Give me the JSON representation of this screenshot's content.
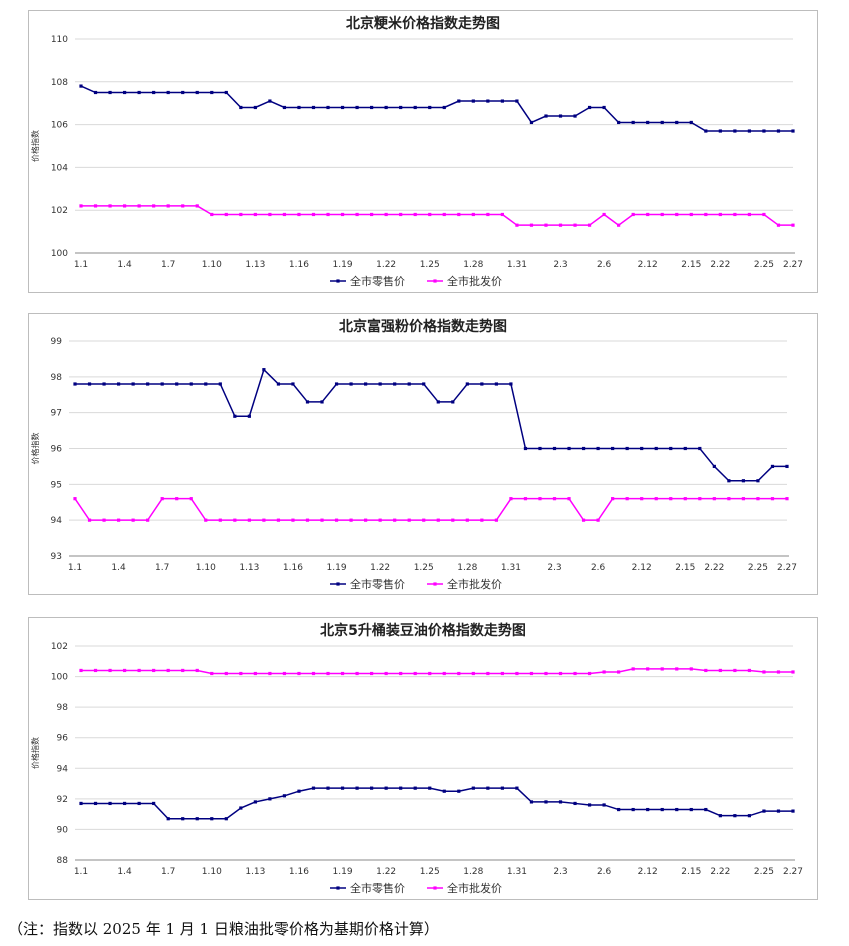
{
  "chart_data": [
    {
      "type": "line",
      "title": "北京粳米价格指数走势图",
      "ylabel": "价格指数",
      "xlabel": "",
      "ylim": [
        100,
        110
      ],
      "yticks": [
        100,
        102,
        104,
        106,
        108,
        110
      ],
      "categories": [
        "1.1",
        "1.2",
        "1.3",
        "1.4",
        "1.5",
        "1.6",
        "1.7",
        "1.8",
        "1.9",
        "1.10",
        "1.11",
        "1.12",
        "1.13",
        "1.14",
        "1.15",
        "1.16",
        "1.17",
        "1.18",
        "1.19",
        "1.20",
        "1.21",
        "1.22",
        "1.23",
        "1.24",
        "1.25",
        "1.26",
        "1.27",
        "1.28",
        "1.29",
        "1.30",
        "1.31",
        "2.1",
        "2.2",
        "2.3",
        "2.4",
        "2.5",
        "2.6",
        "2.7",
        "2.8",
        "2.12",
        "2.13",
        "2.14",
        "2.15",
        "2.18",
        "2.22",
        "2.23",
        "2.24",
        "2.25",
        "2.26",
        "2.27"
      ],
      "xticks": [
        "1.1",
        "1.4",
        "1.7",
        "1.10",
        "1.13",
        "1.16",
        "1.19",
        "1.22",
        "1.25",
        "1.28",
        "1.31",
        "2.3",
        "2.6",
        "2.12",
        "2.15",
        "2.22",
        "2.25",
        "2.27"
      ],
      "legend": [
        "全市零售价",
        "全市批发价"
      ],
      "series": [
        {
          "name": "全市零售价",
          "color": "#000080",
          "values": [
            107.8,
            107.5,
            107.5,
            107.5,
            107.5,
            107.5,
            107.5,
            107.5,
            107.5,
            107.5,
            107.5,
            106.8,
            106.8,
            107.1,
            106.8,
            106.8,
            106.8,
            106.8,
            106.8,
            106.8,
            106.8,
            106.8,
            106.8,
            106.8,
            106.8,
            106.8,
            107.1,
            107.1,
            107.1,
            107.1,
            107.1,
            106.1,
            106.4,
            106.4,
            106.4,
            106.8,
            106.8,
            106.1,
            106.1,
            106.1,
            106.1,
            106.1,
            106.1,
            105.7,
            105.7,
            105.7,
            105.7,
            105.7,
            105.7,
            105.7
          ]
        },
        {
          "name": "全市批发价",
          "color": "#ff00ff",
          "values": [
            102.2,
            102.2,
            102.2,
            102.2,
            102.2,
            102.2,
            102.2,
            102.2,
            102.2,
            101.8,
            101.8,
            101.8,
            101.8,
            101.8,
            101.8,
            101.8,
            101.8,
            101.8,
            101.8,
            101.8,
            101.8,
            101.8,
            101.8,
            101.8,
            101.8,
            101.8,
            101.8,
            101.8,
            101.8,
            101.8,
            101.3,
            101.3,
            101.3,
            101.3,
            101.3,
            101.3,
            101.8,
            101.3,
            101.8,
            101.8,
            101.8,
            101.8,
            101.8,
            101.8,
            101.8,
            101.8,
            101.8,
            101.8,
            101.3,
            101.3
          ]
        }
      ]
    },
    {
      "type": "line",
      "title": "北京富强粉价格指数走势图",
      "ylabel": "价格指数",
      "xlabel": "",
      "ylim": [
        93,
        99
      ],
      "yticks": [
        93,
        94,
        95,
        96,
        97,
        98,
        99
      ],
      "categories": [
        "1.1",
        "1.2",
        "1.3",
        "1.4",
        "1.5",
        "1.6",
        "1.7",
        "1.8",
        "1.9",
        "1.10",
        "1.11",
        "1.12",
        "1.13",
        "1.14",
        "1.15",
        "1.16",
        "1.17",
        "1.18",
        "1.19",
        "1.20",
        "1.21",
        "1.22",
        "1.23",
        "1.24",
        "1.25",
        "1.26",
        "1.27",
        "1.28",
        "1.29",
        "1.30",
        "1.31",
        "2.1",
        "2.2",
        "2.3",
        "2.4",
        "2.5",
        "2.6",
        "2.7",
        "2.8",
        "2.12",
        "2.13",
        "2.14",
        "2.15",
        "2.18",
        "2.22",
        "2.23",
        "2.24",
        "2.25",
        "2.26",
        "2.27"
      ],
      "xticks": [
        "1.1",
        "1.4",
        "1.7",
        "1.10",
        "1.13",
        "1.16",
        "1.19",
        "1.22",
        "1.25",
        "1.28",
        "1.31",
        "2.3",
        "2.6",
        "2.12",
        "2.15",
        "2.22",
        "2.25",
        "2.27"
      ],
      "legend": [
        "全市零售价",
        "全市批发价"
      ],
      "series": [
        {
          "name": "全市零售价",
          "color": "#000080",
          "values": [
            97.8,
            97.8,
            97.8,
            97.8,
            97.8,
            97.8,
            97.8,
            97.8,
            97.8,
            97.8,
            97.8,
            96.9,
            96.9,
            98.2,
            97.8,
            97.8,
            97.3,
            97.3,
            97.8,
            97.8,
            97.8,
            97.8,
            97.8,
            97.8,
            97.8,
            97.3,
            97.3,
            97.8,
            97.8,
            97.8,
            97.8,
            96.0,
            96.0,
            96.0,
            96.0,
            96.0,
            96.0,
            96.0,
            96.0,
            96.0,
            96.0,
            96.0,
            96.0,
            96.0,
            95.5,
            95.1,
            95.1,
            95.1,
            95.5,
            95.5
          ]
        },
        {
          "name": "全市批发价",
          "color": "#ff00ff",
          "values": [
            94.6,
            94.0,
            94.0,
            94.0,
            94.0,
            94.0,
            94.6,
            94.6,
            94.6,
            94.0,
            94.0,
            94.0,
            94.0,
            94.0,
            94.0,
            94.0,
            94.0,
            94.0,
            94.0,
            94.0,
            94.0,
            94.0,
            94.0,
            94.0,
            94.0,
            94.0,
            94.0,
            94.0,
            94.0,
            94.0,
            94.6,
            94.6,
            94.6,
            94.6,
            94.6,
            94.0,
            94.0,
            94.6,
            94.6,
            94.6,
            94.6,
            94.6,
            94.6,
            94.6,
            94.6,
            94.6,
            94.6,
            94.6,
            94.6,
            94.6
          ]
        }
      ]
    },
    {
      "type": "line",
      "title": "北京5升桶装豆油价格指数走势图",
      "ylabel": "价格指数",
      "xlabel": "",
      "ylim": [
        88,
        102
      ],
      "yticks": [
        88,
        90,
        92,
        94,
        96,
        98,
        100,
        102
      ],
      "categories": [
        "1.1",
        "1.2",
        "1.3",
        "1.4",
        "1.5",
        "1.6",
        "1.7",
        "1.8",
        "1.9",
        "1.10",
        "1.11",
        "1.12",
        "1.13",
        "1.14",
        "1.15",
        "1.16",
        "1.17",
        "1.18",
        "1.19",
        "1.20",
        "1.21",
        "1.22",
        "1.23",
        "1.24",
        "1.25",
        "1.26",
        "1.27",
        "1.28",
        "1.29",
        "1.30",
        "1.31",
        "2.1",
        "2.2",
        "2.3",
        "2.4",
        "2.5",
        "2.6",
        "2.7",
        "2.8",
        "2.12",
        "2.13",
        "2.14",
        "2.15",
        "2.18",
        "2.22",
        "2.23",
        "2.24",
        "2.25",
        "2.26",
        "2.27"
      ],
      "xticks": [
        "1.1",
        "1.4",
        "1.7",
        "1.10",
        "1.13",
        "1.16",
        "1.19",
        "1.22",
        "1.25",
        "1.28",
        "1.31",
        "2.3",
        "2.6",
        "2.12",
        "2.15",
        "2.22",
        "2.25",
        "2.27"
      ],
      "legend": [
        "全市零售价",
        "全市批发价"
      ],
      "series": [
        {
          "name": "全市零售价",
          "color": "#000080",
          "values": [
            91.7,
            91.7,
            91.7,
            91.7,
            91.7,
            91.7,
            90.7,
            90.7,
            90.7,
            90.7,
            90.7,
            91.4,
            91.8,
            92.0,
            92.2,
            92.5,
            92.7,
            92.7,
            92.7,
            92.7,
            92.7,
            92.7,
            92.7,
            92.7,
            92.7,
            92.5,
            92.5,
            92.7,
            92.7,
            92.7,
            92.7,
            91.8,
            91.8,
            91.8,
            91.7,
            91.6,
            91.6,
            91.3,
            91.3,
            91.3,
            91.3,
            91.3,
            91.3,
            91.3,
            90.9,
            90.9,
            90.9,
            91.2,
            91.2,
            91.2
          ]
        },
        {
          "name": "全市批发价",
          "color": "#ff00ff",
          "values": [
            100.4,
            100.4,
            100.4,
            100.4,
            100.4,
            100.4,
            100.4,
            100.4,
            100.4,
            100.2,
            100.2,
            100.2,
            100.2,
            100.2,
            100.2,
            100.2,
            100.2,
            100.2,
            100.2,
            100.2,
            100.2,
            100.2,
            100.2,
            100.2,
            100.2,
            100.2,
            100.2,
            100.2,
            100.2,
            100.2,
            100.2,
            100.2,
            100.2,
            100.2,
            100.2,
            100.2,
            100.3,
            100.3,
            100.5,
            100.5,
            100.5,
            100.5,
            100.5,
            100.4,
            100.4,
            100.4,
            100.4,
            100.3,
            100.3,
            100.3
          ]
        }
      ]
    }
  ],
  "footnote": "（注：指数以 2025 年 1 月 1 日粮油批零价格为基期价格计算）"
}
